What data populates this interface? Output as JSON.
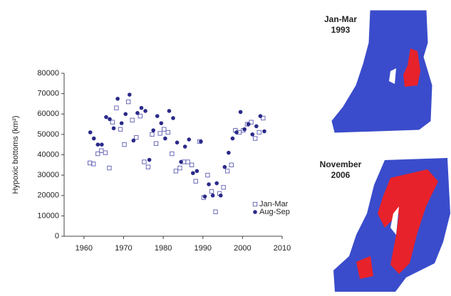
{
  "chart_data": {
    "type": "scatter",
    "ylabel": "Hypoxic bottoms (km²)",
    "xlim": [
      1955,
      2010
    ],
    "xticks": [
      1960,
      1970,
      1980,
      1990,
      2000,
      2010
    ],
    "ylim": [
      0,
      80000
    ],
    "yticks": [
      0,
      10000,
      20000,
      30000,
      40000,
      50000,
      60000,
      70000,
      80000
    ],
    "legend": "lower right",
    "series": [
      {
        "name": "Jan-Mar",
        "marker": "open-square",
        "color": "#6a6ab8",
        "x": [
          1961.5,
          1962.4,
          1963.5,
          1964.4,
          1965.4,
          1966.4,
          1967.2,
          1968.2,
          1969.2,
          1970.2,
          1971.2,
          1972.2,
          1973.2,
          1974.2,
          1975.2,
          1976.2,
          1977.2,
          1978.2,
          1979.2,
          1980.2,
          1981.2,
          1982.2,
          1983.2,
          1984.2,
          1985.2,
          1986.2,
          1987.2,
          1988.2,
          1989.2,
          1990.2,
          1991.2,
          1992.2,
          1993.2,
          1994.2,
          1995.2,
          1996.2,
          1997.2,
          1998.2,
          1999.2,
          2000.2,
          2001.2,
          2002.2,
          2003.2,
          2004.2,
          2005.2
        ],
        "values": [
          36000,
          35500,
          40500,
          42000,
          41000,
          33500,
          56000,
          63000,
          52500,
          45000,
          66000,
          57000,
          48500,
          59000,
          36500,
          34000,
          50000,
          45500,
          50500,
          52500,
          51000,
          40500,
          32000,
          33500,
          36500,
          36500,
          35000,
          27000,
          46500,
          19000,
          30000,
          22000,
          12000,
          21000,
          24000,
          32000,
          35000,
          52000,
          51000,
          52000,
          55000,
          56000,
          48000,
          51000,
          58000
        ]
      },
      {
        "name": "Aug-Sep",
        "marker": "dot",
        "color": "#2a2a8a",
        "x": [
          1961.6,
          1962.5,
          1963.5,
          1964.5,
          1965.6,
          1966.5,
          1967.5,
          1968.5,
          1969.5,
          1970.5,
          1971.5,
          1972.5,
          1973.5,
          1974.5,
          1975.5,
          1976.5,
          1977.5,
          1978.5,
          1979.5,
          1980.5,
          1981.5,
          1982.5,
          1983.5,
          1984.5,
          1985.5,
          1986.5,
          1987.5,
          1988.5,
          1989.5,
          1990.5,
          1991.5,
          1992.5,
          1993.5,
          1994.5,
          1995.5,
          1996.5,
          1997.5,
          1998.5,
          1999.5,
          2000.5,
          2001.5,
          2002.5,
          2003.5,
          2004.5,
          2005.5
        ],
        "values": [
          51000,
          48000,
          45000,
          45000,
          58500,
          57500,
          53000,
          67500,
          55500,
          60000,
          69500,
          47000,
          60500,
          63000,
          61500,
          37500,
          52000,
          59000,
          55500,
          48000,
          61500,
          58000,
          46000,
          36500,
          44000,
          47500,
          31000,
          32000,
          46500,
          19500,
          25500,
          20000,
          26000,
          20000,
          34000,
          41000,
          48000,
          51000,
          61000,
          52500,
          55000,
          50000,
          54000,
          59000,
          51500
        ]
      }
    ]
  },
  "maps": [
    {
      "lines": [
        "Jan-Mar",
        "1993"
      ]
    },
    {
      "lines": [
        "November",
        "2006"
      ]
    }
  ]
}
